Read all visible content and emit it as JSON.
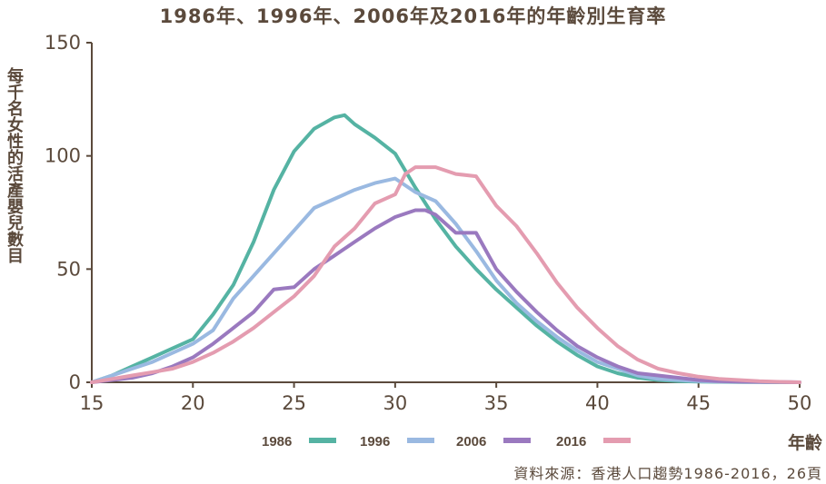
{
  "chart_data": {
    "type": "line",
    "title": "1986年、1996年、2006年及2016年的年齡別生育率",
    "ylabel": "每千名女性的活產嬰兒數目",
    "xlabel": "年齡",
    "source": "資料來源：香港人口趨勢1986-2016，26頁",
    "xlim": [
      15,
      50
    ],
    "ylim": [
      0,
      150
    ],
    "xticks": [
      15,
      20,
      25,
      30,
      35,
      40,
      45,
      50
    ],
    "yticks": [
      0,
      50,
      100,
      150
    ],
    "grid": false,
    "legend_position": "bottom",
    "colors": {
      "text": "#5b4a3c",
      "axis": "#5b4a3c"
    },
    "series": [
      {
        "name": "1986",
        "color": "#55b3a3",
        "x": [
          15,
          16,
          17,
          18,
          19,
          20,
          21,
          22,
          23,
          24,
          25,
          26,
          27,
          27.5,
          28,
          29,
          30,
          31,
          32,
          33,
          34,
          35,
          36,
          37,
          38,
          39,
          40,
          41,
          42,
          43,
          44,
          45,
          46,
          47,
          48,
          49,
          50
        ],
        "y": [
          0,
          3,
          7,
          11,
          15,
          19,
          30,
          43,
          62,
          85,
          102,
          112,
          117,
          118,
          114,
          108,
          101,
          86,
          72,
          60,
          50,
          41,
          33,
          25,
          18,
          12,
          7,
          4,
          2,
          1,
          0.5,
          0.3,
          0.2,
          0.1,
          0.1,
          0,
          0
        ]
      },
      {
        "name": "1996",
        "color": "#9ab9e1",
        "x": [
          15,
          16,
          17,
          18,
          19,
          20,
          21,
          22,
          23,
          24,
          25,
          26,
          27,
          28,
          29,
          30,
          31,
          32,
          33,
          34,
          35,
          36,
          37,
          38,
          39,
          40,
          41,
          42,
          43,
          44,
          45,
          46,
          47,
          48,
          49,
          50
        ],
        "y": [
          0,
          3,
          6,
          9,
          13,
          17,
          23,
          37,
          47,
          57,
          67,
          77,
          81,
          85,
          88,
          90,
          84,
          80,
          70,
          58,
          45,
          35,
          27,
          20,
          14,
          9,
          6,
          3,
          1.5,
          1,
          0.5,
          0.3,
          0.2,
          0.1,
          0.1,
          0
        ]
      },
      {
        "name": "2006",
        "color": "#9a79bf",
        "x": [
          15,
          16,
          17,
          18,
          19,
          20,
          21,
          22,
          23,
          24,
          25,
          26,
          27,
          28,
          29,
          30,
          31,
          31.5,
          32,
          33,
          34,
          35,
          36,
          37,
          38,
          39,
          40,
          41,
          42,
          43,
          44,
          45,
          46,
          47,
          48,
          49,
          50
        ],
        "y": [
          0,
          1,
          2,
          4,
          7,
          11,
          17,
          24,
          31,
          41,
          42,
          50,
          56,
          62,
          68,
          73,
          76,
          76,
          74,
          66,
          66,
          50,
          40,
          31,
          23,
          16,
          11,
          7,
          4,
          3,
          2,
          1,
          0.5,
          0.3,
          0.2,
          0.1,
          0
        ]
      },
      {
        "name": "2016",
        "color": "#e49cb0",
        "x": [
          15,
          16,
          17,
          18,
          19,
          20,
          21,
          22,
          23,
          24,
          25,
          26,
          27,
          28,
          29,
          30,
          30.5,
          31,
          32,
          33,
          34,
          35,
          36,
          37,
          38,
          39,
          40,
          41,
          42,
          43,
          44,
          45,
          46,
          47,
          48,
          49,
          50
        ],
        "y": [
          0,
          1.5,
          3,
          4.5,
          6,
          9,
          13,
          18,
          24,
          31,
          38,
          47,
          60,
          68,
          79,
          83,
          92,
          95,
          95,
          92,
          91,
          78,
          69,
          57,
          44,
          33,
          24,
          16,
          10,
          6,
          4,
          2.5,
          1.5,
          1,
          0.5,
          0.2,
          0
        ]
      }
    ]
  }
}
